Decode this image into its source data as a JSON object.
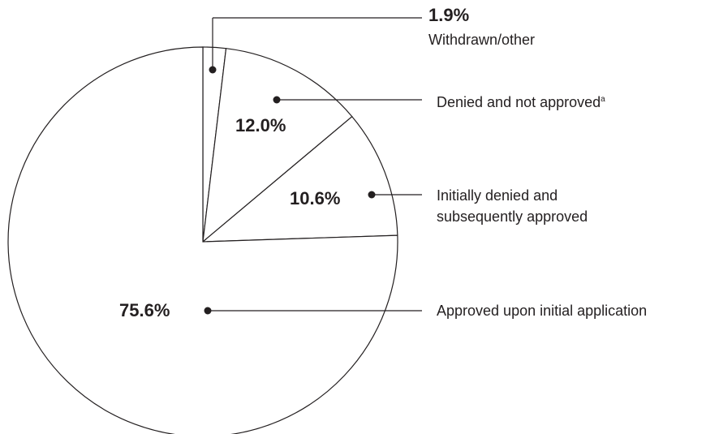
{
  "chart_data": {
    "type": "pie",
    "categories": [
      "Withdrawn/other",
      "Denied and not approved",
      "Initially denied and subsequently approved",
      "Approved upon initial application"
    ],
    "footnote_marks": [
      null,
      "a",
      null,
      null
    ],
    "values": [
      1.9,
      12.0,
      10.6,
      75.6
    ],
    "value_labels": [
      "1.9%",
      "12.0%",
      "10.6%",
      "75.6%"
    ],
    "colors": [
      "#ffffff",
      "#ffffff",
      "#ffffff",
      "#ffffff"
    ],
    "edge_color": "#231f20"
  }
}
